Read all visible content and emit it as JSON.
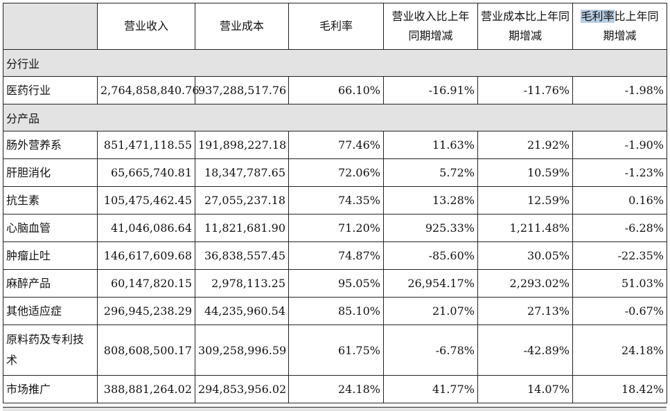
{
  "header": {
    "col1": "",
    "col2": "营业收入",
    "col3": "营业成本",
    "col4": "毛利率",
    "col5": "营业收入比上年同期增减",
    "col6": "营业成本比上年同期增减",
    "col7_highlight": "毛利率",
    "col7_rest": "比上年同期增减"
  },
  "sections": {
    "industry": "分行业",
    "product": "分产品"
  },
  "industry_rows": [
    {
      "name": "医药行业",
      "revenue": "2,764,858,840.76",
      "cost": "937,288,517.76",
      "margin": "66.10%",
      "rev_change": "-16.91%",
      "cost_change": "-11.76%",
      "margin_change": "-1.98%"
    }
  ],
  "product_rows": [
    {
      "name": "肠外营养系",
      "revenue": "851,471,118.55",
      "cost": "191,898,227.18",
      "margin": "77.46%",
      "rev_change": "11.63%",
      "cost_change": "21.92%",
      "margin_change": "-1.90%"
    },
    {
      "name": "肝胆消化",
      "revenue": "65,665,740.81",
      "cost": "18,347,787.65",
      "margin": "72.06%",
      "rev_change": "5.72%",
      "cost_change": "10.59%",
      "margin_change": "-1.23%"
    },
    {
      "name": "抗生素",
      "revenue": "105,475,462.45",
      "cost": "27,055,237.18",
      "margin": "74.35%",
      "rev_change": "13.28%",
      "cost_change": "12.59%",
      "margin_change": "0.16%"
    },
    {
      "name": "心脑血管",
      "revenue": "41,046,086.64",
      "cost": "11,821,681.90",
      "margin": "71.20%",
      "rev_change": "925.33%",
      "cost_change": "1,211.48%",
      "margin_change": "-6.28%"
    },
    {
      "name": "肿瘤止吐",
      "revenue": "146,617,609.68",
      "cost": "36,838,557.45",
      "margin": "74.87%",
      "rev_change": "-85.60%",
      "cost_change": "30.05%",
      "margin_change": "-22.35%"
    },
    {
      "name": "麻醉产品",
      "revenue": "60,147,820.15",
      "cost": "2,978,113.25",
      "margin": "95.05%",
      "rev_change": "26,954.17%",
      "cost_change": "2,293.02%",
      "margin_change": "51.03%"
    },
    {
      "name": "其他适应症",
      "revenue": "296,945,238.29",
      "cost": "44,235,960.54",
      "margin": "85.10%",
      "rev_change": "21.07%",
      "cost_change": "27.13%",
      "margin_change": "-0.67%"
    },
    {
      "name": "原料药及专利技术",
      "revenue": "808,608,500.17",
      "cost": "309,258,996.59",
      "margin": "61.75%",
      "rev_change": "-6.78%",
      "cost_change": "-42.89%",
      "margin_change": "24.18%"
    },
    {
      "name": "市场推广",
      "revenue": "388,881,264.02",
      "cost": "294,853,956.02",
      "margin": "24.18%",
      "rev_change": "41.77%",
      "cost_change": "14.07%",
      "margin_change": "18.42%"
    }
  ]
}
